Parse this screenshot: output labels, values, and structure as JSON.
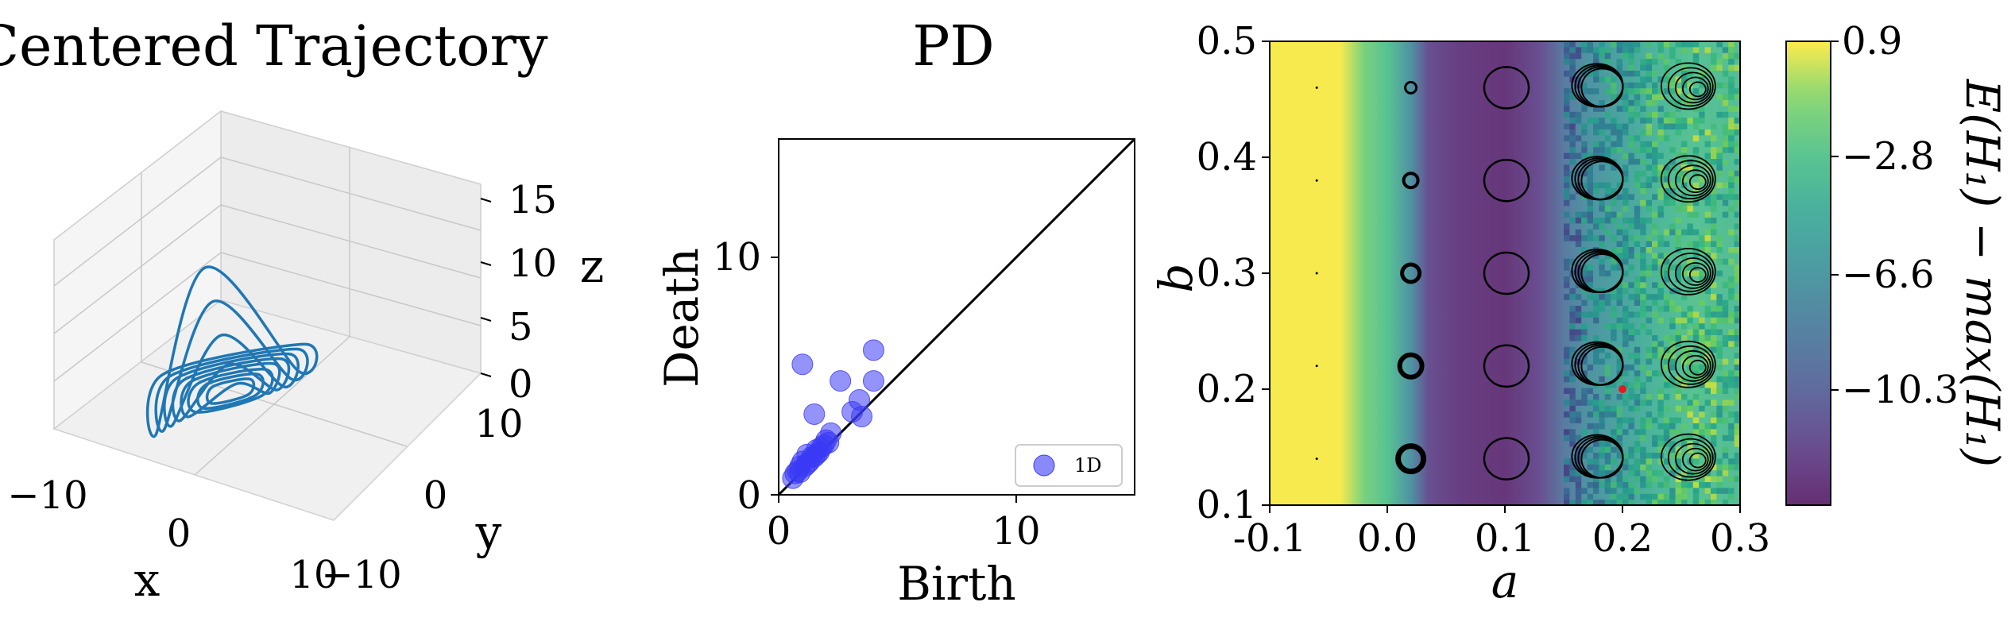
{
  "figure": {
    "panels": [
      "trajectory-3d",
      "persistence-diagram",
      "heatmap"
    ]
  },
  "chart_data": [
    {
      "type": "line",
      "subtype": "3d-trajectory",
      "title": "Centered Trajectory",
      "xlabel": "x",
      "ylabel": "y",
      "zlabel": "z",
      "x_ticks": [
        "−10",
        "0",
        "10"
      ],
      "y_ticks": [
        "−10",
        "0",
        "10"
      ],
      "z_ticks": [
        "0",
        "5",
        "10",
        "15"
      ],
      "xlim": [
        -10,
        10
      ],
      "ylim": [
        -10,
        10
      ],
      "zlim": [
        0,
        15
      ],
      "line_color": "#1f77b4",
      "grid": true,
      "series": [
        {
          "values": [
            [
              -9.5,
              0,
              0.2
            ],
            [
              0,
              9.5,
              0.3
            ],
            [
              9.5,
              0,
              4
            ],
            [
              3,
              -6,
              16.5
            ],
            [
              0,
              -9.5,
              0.6
            ],
            [
              -9.5,
              0,
              0.2
            ]
          ]
        },
        {
          "values": [
            [
              -8.5,
              0,
              0.2
            ],
            [
              0,
              8.5,
              0.3
            ],
            [
              8.5,
              0,
              3
            ],
            [
              3,
              -5,
              12.5
            ],
            [
              0,
              -8.5,
              0.5
            ],
            [
              -8.5,
              0,
              0.2
            ]
          ]
        },
        {
          "values": [
            [
              -7.5,
              0,
              0.2
            ],
            [
              0,
              7.5,
              0.3
            ],
            [
              7.5,
              0,
              2
            ],
            [
              3,
              -4,
              8.5
            ],
            [
              0,
              -7.5,
              0.4
            ],
            [
              -7.5,
              0,
              0.2
            ]
          ]
        },
        {
          "values": [
            [
              -6.5,
              0,
              0.2
            ],
            [
              0,
              6.5,
              0.3
            ],
            [
              6.5,
              0,
              1.5
            ],
            [
              3,
              -3,
              5
            ],
            [
              0,
              -6.5,
              0.4
            ],
            [
              -6.5,
              0,
              0.2
            ]
          ]
        },
        {
          "values": [
            [
              -5.5,
              0,
              0.2
            ],
            [
              0,
              5.5,
              0.3
            ],
            [
              5.5,
              0,
              1
            ],
            [
              3,
              -2,
              2.5
            ],
            [
              0,
              -5.5,
              0.3
            ],
            [
              -5.5,
              0,
              0.2
            ]
          ]
        },
        {
          "values": [
            [
              -4.5,
              0,
              0.2
            ],
            [
              0,
              4.5,
              0.2
            ],
            [
              4.5,
              0,
              0.6
            ],
            [
              0,
              -4.5,
              0.3
            ],
            [
              -4.5,
              0,
              0.2
            ]
          ]
        },
        {
          "values": [
            [
              -3.5,
              0,
              0.2
            ],
            [
              0,
              3.5,
              0.2
            ],
            [
              3.5,
              0,
              0.4
            ],
            [
              0,
              -3.5,
              0.2
            ],
            [
              -3.5,
              0,
              0.2
            ]
          ]
        },
        {
          "values": [
            [
              -2.5,
              0,
              0.2
            ],
            [
              0,
              2.5,
              0.2
            ],
            [
              2.5,
              0,
              0.3
            ],
            [
              0,
              -2.5,
              0.2
            ],
            [
              -2.5,
              0,
              0.2
            ]
          ]
        }
      ]
    },
    {
      "type": "scatter",
      "title": "PD",
      "xlabel": "Birth",
      "ylabel": "Death",
      "xlim": [
        0,
        15
      ],
      "ylim": [
        0,
        15
      ],
      "x_ticks": [
        "0",
        "10"
      ],
      "y_ticks": [
        "0",
        "10"
      ],
      "diagonal": true,
      "legend": "bottom-right",
      "series": [
        {
          "name": "1D",
          "color": "#3b3bf5",
          "points": [
            [
              1.0,
              5.5
            ],
            [
              4.0,
              6.1
            ],
            [
              2.6,
              4.8
            ],
            [
              4.0,
              4.8
            ],
            [
              1.5,
              3.4
            ],
            [
              3.1,
              3.5
            ],
            [
              3.4,
              4.0
            ],
            [
              3.5,
              3.3
            ],
            [
              2.2,
              2.6
            ],
            [
              2.0,
              2.3
            ],
            [
              1.8,
              2.0
            ],
            [
              1.6,
              1.9
            ],
            [
              1.2,
              1.7
            ],
            [
              1.4,
              1.6
            ],
            [
              1.0,
              1.4
            ],
            [
              0.9,
              1.2
            ],
            [
              0.8,
              1.0
            ],
            [
              0.7,
              0.9
            ],
            [
              1.1,
              1.2
            ],
            [
              1.3,
              1.4
            ],
            [
              1.5,
              1.6
            ],
            [
              1.7,
              1.8
            ],
            [
              1.9,
              2.1
            ],
            [
              2.1,
              2.2
            ],
            [
              0.6,
              0.7
            ],
            [
              0.9,
              0.95
            ],
            [
              1.2,
              1.3
            ],
            [
              1.6,
              1.7
            ]
          ]
        }
      ]
    },
    {
      "type": "heatmap",
      "xlabel": "a",
      "ylabel": "b",
      "xlim": [
        -0.1,
        0.3
      ],
      "ylim": [
        0.1,
        0.5
      ],
      "x_ticks": [
        "-0.1",
        "0.0",
        "0.1",
        "0.2",
        "0.3"
      ],
      "y_ticks": [
        "0.1",
        "0.2",
        "0.3",
        "0.4",
        "0.5"
      ],
      "colorbar": {
        "label": "E(H₁) − max(H₁)",
        "ticks": [
          "0.9",
          "−2.8",
          "−6.6",
          "−10.3"
        ],
        "tick_values": [
          0.9,
          -2.8,
          -6.6,
          -10.3
        ],
        "range": [
          -14,
          0.9
        ],
        "colormap": "viridis"
      },
      "column_profile": [
        {
          "a": -0.1,
          "value": 0.8
        },
        {
          "a": -0.04,
          "value": 0.8
        },
        {
          "a": -0.02,
          "value": -1.5
        },
        {
          "a": 0.0,
          "value": -3
        },
        {
          "a": 0.02,
          "value": -7
        },
        {
          "a": 0.035,
          "value": -12
        },
        {
          "a": 0.06,
          "value": -13
        },
        {
          "a": 0.1,
          "value": -13.5
        },
        {
          "a": 0.13,
          "value": -12
        },
        {
          "a": 0.15,
          "value": -9
        },
        {
          "a": 0.17,
          "value": -7
        },
        {
          "a": 0.2,
          "value": -5.5
        },
        {
          "a": 0.23,
          "value": -4
        },
        {
          "a": 0.26,
          "value": -3
        },
        {
          "a": 0.3,
          "value": -3.5
        }
      ],
      "marker": {
        "a": 0.2,
        "b": 0.2,
        "color": "#e31a1c"
      },
      "attractor_insets": {
        "a_positions": [
          -0.06,
          0.02,
          0.1,
          0.18,
          0.26
        ],
        "b_positions": [
          0.14,
          0.22,
          0.3,
          0.38,
          0.46
        ]
      }
    }
  ]
}
